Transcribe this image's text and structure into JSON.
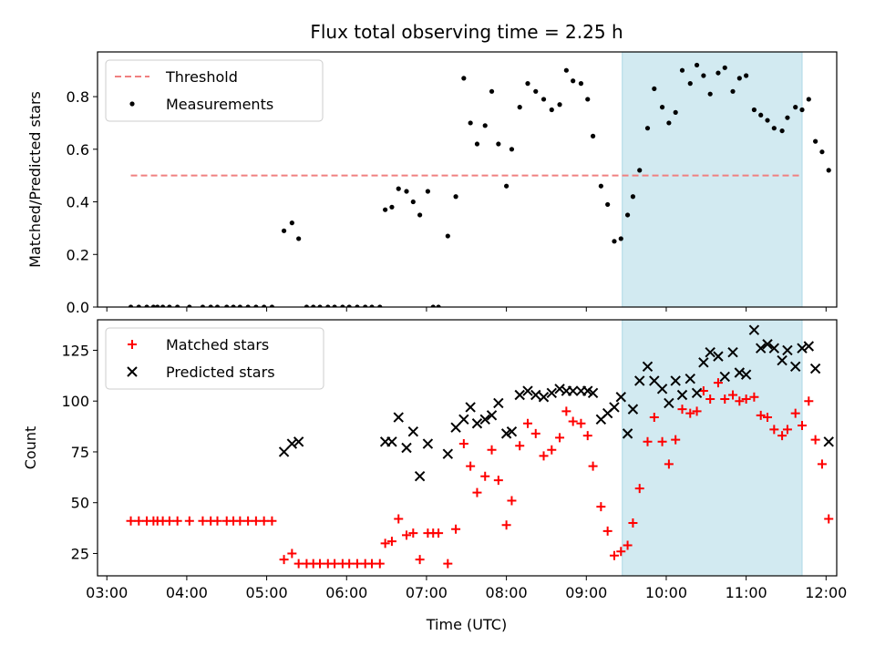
{
  "figure": {
    "title": "Flux total observing time = 2.25 h",
    "xlabel": "Time (UTC)",
    "x_ticks": [
      "03:00",
      "04:00",
      "05:00",
      "06:00",
      "07:00",
      "08:00",
      "09:00",
      "10:00",
      "11:00",
      "12:00"
    ],
    "highlight_span": [
      "09:27",
      "11:42"
    ],
    "colors": {
      "threshold": "#f08080",
      "highlight": "#add8e6",
      "matched": "#ff0000",
      "predicted": "#000000",
      "measurement": "#000000"
    }
  },
  "chart_data": [
    {
      "type": "scatter",
      "title": "Flux total observing time = 2.25 h",
      "ylabel": "Matched/Predicted stars",
      "xlim": [
        "02:53",
        "12:08"
      ],
      "ylim": [
        0,
        0.97
      ],
      "y_ticks": [
        "0.0",
        "0.2",
        "0.4",
        "0.6",
        "0.8"
      ],
      "legend": {
        "placement": "top-left",
        "entries": [
          "Threshold",
          "Measurements"
        ]
      },
      "threshold": {
        "name": "Threshold",
        "value": 0.5,
        "x_range": [
          "03:18",
          "11:42"
        ]
      },
      "series": [
        {
          "name": "Measurements",
          "points": [
            [
              "03:18",
              0
            ],
            [
              "03:24",
              0
            ],
            [
              "03:30",
              0
            ],
            [
              "03:35",
              0
            ],
            [
              "03:38",
              0
            ],
            [
              "03:42",
              0
            ],
            [
              "03:47",
              0
            ],
            [
              "03:53",
              0
            ],
            [
              "04:02",
              0
            ],
            [
              "04:12",
              0
            ],
            [
              "04:18",
              0
            ],
            [
              "04:23",
              0
            ],
            [
              "04:30",
              0
            ],
            [
              "04:35",
              0
            ],
            [
              "04:40",
              0
            ],
            [
              "04:46",
              0
            ],
            [
              "04:52",
              0
            ],
            [
              "04:58",
              0
            ],
            [
              "05:04",
              0
            ],
            [
              "05:13",
              0.29
            ],
            [
              "05:19",
              0.32
            ],
            [
              "05:24",
              0.26
            ],
            [
              "05:30",
              0
            ],
            [
              "05:35",
              0
            ],
            [
              "05:40",
              0
            ],
            [
              "05:46",
              0
            ],
            [
              "05:51",
              0
            ],
            [
              "05:57",
              0
            ],
            [
              "06:02",
              0
            ],
            [
              "06:08",
              0
            ],
            [
              "06:14",
              0
            ],
            [
              "06:19",
              0
            ],
            [
              "06:25",
              0
            ],
            [
              "06:29",
              0.37
            ],
            [
              "06:34",
              0.38
            ],
            [
              "06:39",
              0.45
            ],
            [
              "06:45",
              0.44
            ],
            [
              "06:50",
              0.4
            ],
            [
              "06:55",
              0.35
            ],
            [
              "07:01",
              0.44
            ],
            [
              "07:05",
              0
            ],
            [
              "07:09",
              0
            ],
            [
              "07:16",
              0.27
            ],
            [
              "07:22",
              0.42
            ],
            [
              "07:28",
              0.87
            ],
            [
              "07:33",
              0.7
            ],
            [
              "07:38",
              0.62
            ],
            [
              "07:44",
              0.69
            ],
            [
              "07:49",
              0.82
            ],
            [
              "07:54",
              0.62
            ],
            [
              "08:00",
              0.46
            ],
            [
              "08:04",
              0.6
            ],
            [
              "08:10",
              0.76
            ],
            [
              "08:16",
              0.85
            ],
            [
              "08:22",
              0.82
            ],
            [
              "08:28",
              0.79
            ],
            [
              "08:34",
              0.75
            ],
            [
              "08:40",
              0.77
            ],
            [
              "08:45",
              0.9
            ],
            [
              "08:50",
              0.86
            ],
            [
              "08:56",
              0.85
            ],
            [
              "09:01",
              0.79
            ],
            [
              "09:05",
              0.65
            ],
            [
              "09:11",
              0.46
            ],
            [
              "09:16",
              0.39
            ],
            [
              "09:21",
              0.25
            ],
            [
              "09:26",
              0.26
            ],
            [
              "09:31",
              0.35
            ],
            [
              "09:35",
              0.42
            ],
            [
              "09:40",
              0.52
            ],
            [
              "09:46",
              0.68
            ],
            [
              "09:51",
              0.83
            ],
            [
              "09:57",
              0.76
            ],
            [
              "10:02",
              0.7
            ],
            [
              "10:07",
              0.74
            ],
            [
              "10:12",
              0.9
            ],
            [
              "10:18",
              0.85
            ],
            [
              "10:23",
              0.92
            ],
            [
              "10:28",
              0.88
            ],
            [
              "10:33",
              0.81
            ],
            [
              "10:39",
              0.89
            ],
            [
              "10:44",
              0.91
            ],
            [
              "10:50",
              0.82
            ],
            [
              "10:55",
              0.87
            ],
            [
              "11:00",
              0.88
            ],
            [
              "11:06",
              0.75
            ],
            [
              "11:11",
              0.73
            ],
            [
              "11:16",
              0.71
            ],
            [
              "11:21",
              0.68
            ],
            [
              "11:27",
              0.67
            ],
            [
              "11:31",
              0.72
            ],
            [
              "11:37",
              0.76
            ],
            [
              "11:42",
              0.75
            ],
            [
              "11:47",
              0.79
            ],
            [
              "11:52",
              0.63
            ],
            [
              "11:57",
              0.59
            ],
            [
              "12:02",
              0.52
            ]
          ]
        }
      ]
    },
    {
      "type": "scatter",
      "ylabel": "Count",
      "xlim": [
        "02:53",
        "12:08"
      ],
      "ylim": [
        14,
        140
      ],
      "y_ticks": [
        "25",
        "50",
        "75",
        "100",
        "125"
      ],
      "legend": {
        "placement": "top-left",
        "entries": [
          "Matched stars",
          "Predicted stars"
        ]
      },
      "series": [
        {
          "name": "Matched stars",
          "points": [
            [
              "03:18",
              41
            ],
            [
              "03:24",
              41
            ],
            [
              "03:30",
              41
            ],
            [
              "03:35",
              41
            ],
            [
              "03:38",
              41
            ],
            [
              "03:42",
              41
            ],
            [
              "03:47",
              41
            ],
            [
              "03:53",
              41
            ],
            [
              "04:02",
              41
            ],
            [
              "04:12",
              41
            ],
            [
              "04:18",
              41
            ],
            [
              "04:23",
              41
            ],
            [
              "04:30",
              41
            ],
            [
              "04:35",
              41
            ],
            [
              "04:40",
              41
            ],
            [
              "04:46",
              41
            ],
            [
              "04:52",
              41
            ],
            [
              "04:58",
              41
            ],
            [
              "05:04",
              41
            ],
            [
              "05:13",
              22
            ],
            [
              "05:19",
              25
            ],
            [
              "05:24",
              20
            ],
            [
              "05:30",
              20
            ],
            [
              "05:35",
              20
            ],
            [
              "05:40",
              20
            ],
            [
              "05:46",
              20
            ],
            [
              "05:51",
              20
            ],
            [
              "05:57",
              20
            ],
            [
              "06:02",
              20
            ],
            [
              "06:08",
              20
            ],
            [
              "06:14",
              20
            ],
            [
              "06:19",
              20
            ],
            [
              "06:25",
              20
            ],
            [
              "06:29",
              30
            ],
            [
              "06:34",
              31
            ],
            [
              "06:39",
              42
            ],
            [
              "06:45",
              34
            ],
            [
              "06:50",
              35
            ],
            [
              "06:55",
              22
            ],
            [
              "07:01",
              35
            ],
            [
              "07:05",
              35
            ],
            [
              "07:09",
              35
            ],
            [
              "07:16",
              20
            ],
            [
              "07:22",
              37
            ],
            [
              "07:28",
              79
            ],
            [
              "07:33",
              68
            ],
            [
              "07:38",
              55
            ],
            [
              "07:44",
              63
            ],
            [
              "07:49",
              76
            ],
            [
              "07:54",
              61
            ],
            [
              "08:00",
              39
            ],
            [
              "08:04",
              51
            ],
            [
              "08:10",
              78
            ],
            [
              "08:16",
              89
            ],
            [
              "08:22",
              84
            ],
            [
              "08:28",
              73
            ],
            [
              "08:34",
              76
            ],
            [
              "08:40",
              82
            ],
            [
              "08:45",
              95
            ],
            [
              "08:50",
              90
            ],
            [
              "08:56",
              89
            ],
            [
              "09:01",
              83
            ],
            [
              "09:05",
              68
            ],
            [
              "09:11",
              48
            ],
            [
              "09:16",
              36
            ],
            [
              "09:21",
              24
            ],
            [
              "09:26",
              26
            ],
            [
              "09:31",
              29
            ],
            [
              "09:35",
              40
            ],
            [
              "09:40",
              57
            ],
            [
              "09:46",
              80
            ],
            [
              "09:51",
              92
            ],
            [
              "09:57",
              80
            ],
            [
              "10:02",
              69
            ],
            [
              "10:07",
              81
            ],
            [
              "10:12",
              96
            ],
            [
              "10:18",
              94
            ],
            [
              "10:23",
              95
            ],
            [
              "10:28",
              105
            ],
            [
              "10:33",
              101
            ],
            [
              "10:39",
              109
            ],
            [
              "10:44",
              101
            ],
            [
              "10:50",
              103
            ],
            [
              "10:55",
              100
            ],
            [
              "11:00",
              101
            ],
            [
              "11:06",
              102
            ],
            [
              "11:11",
              93
            ],
            [
              "11:16",
              92
            ],
            [
              "11:21",
              86
            ],
            [
              "11:27",
              83
            ],
            [
              "11:31",
              86
            ],
            [
              "11:37",
              94
            ],
            [
              "11:42",
              88
            ],
            [
              "11:47",
              100
            ],
            [
              "11:52",
              81
            ],
            [
              "11:57",
              69
            ],
            [
              "12:02",
              42
            ]
          ]
        },
        {
          "name": "Predicted stars",
          "points": [
            [
              "05:13",
              75
            ],
            [
              "05:19",
              79
            ],
            [
              "05:24",
              80
            ],
            [
              "06:29",
              80
            ],
            [
              "06:34",
              80
            ],
            [
              "06:39",
              92
            ],
            [
              "06:45",
              77
            ],
            [
              "06:50",
              85
            ],
            [
              "06:55",
              63
            ],
            [
              "07:01",
              79
            ],
            [
              "07:16",
              74
            ],
            [
              "07:22",
              87
            ],
            [
              "07:28",
              91
            ],
            [
              "07:33",
              97
            ],
            [
              "07:38",
              89
            ],
            [
              "07:44",
              91
            ],
            [
              "07:49",
              93
            ],
            [
              "07:54",
              99
            ],
            [
              "08:00",
              84
            ],
            [
              "08:04",
              85
            ],
            [
              "08:10",
              103
            ],
            [
              "08:16",
              105
            ],
            [
              "08:22",
              103
            ],
            [
              "08:28",
              102
            ],
            [
              "08:34",
              104
            ],
            [
              "08:40",
              106
            ],
            [
              "08:45",
              105
            ],
            [
              "08:50",
              105
            ],
            [
              "08:56",
              105
            ],
            [
              "09:01",
              105
            ],
            [
              "09:05",
              104
            ],
            [
              "09:11",
              91
            ],
            [
              "09:16",
              94
            ],
            [
              "09:21",
              97
            ],
            [
              "09:26",
              102
            ],
            [
              "09:31",
              84
            ],
            [
              "09:35",
              96
            ],
            [
              "09:40",
              110
            ],
            [
              "09:46",
              117
            ],
            [
              "09:51",
              110
            ],
            [
              "09:57",
              106
            ],
            [
              "10:02",
              99
            ],
            [
              "10:07",
              110
            ],
            [
              "10:12",
              103
            ],
            [
              "10:18",
              111
            ],
            [
              "10:23",
              104
            ],
            [
              "10:28",
              119
            ],
            [
              "10:33",
              124
            ],
            [
              "10:39",
              122
            ],
            [
              "10:44",
              112
            ],
            [
              "10:50",
              124
            ],
            [
              "10:55",
              114
            ],
            [
              "11:00",
              113
            ],
            [
              "11:06",
              135
            ],
            [
              "11:11",
              126
            ],
            [
              "11:16",
              128
            ],
            [
              "11:21",
              126
            ],
            [
              "11:27",
              120
            ],
            [
              "11:31",
              125
            ],
            [
              "11:37",
              117
            ],
            [
              "11:42",
              126
            ],
            [
              "11:47",
              127
            ],
            [
              "11:52",
              116
            ],
            [
              "12:02",
              80
            ]
          ]
        }
      ]
    }
  ]
}
